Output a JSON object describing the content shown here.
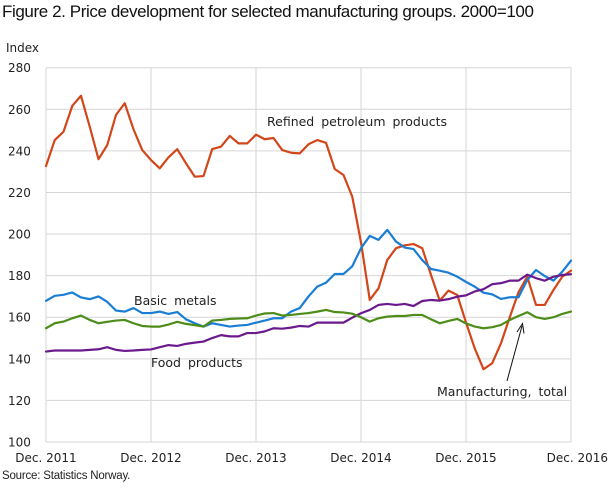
{
  "title": "Figure 2. Price development for selected manufacturing groups. 2000=100",
  "source": "Source: Statistics Norway.",
  "chart_data": {
    "type": "line",
    "title": "Figure 2. Price development for selected manufacturing groups. 2000=100",
    "xlabel": "",
    "ylabel": "Index",
    "ylim": [
      100,
      280
    ],
    "yticks": [
      100,
      120,
      140,
      160,
      180,
      200,
      220,
      240,
      260,
      280
    ],
    "xticks": [
      "Dec. 2011",
      "Dec. 2012",
      "Dec. 2013",
      "Dec. 2014",
      "Dec. 2015",
      "Dec. 2016"
    ],
    "x_start": "Dec. 2011",
    "x_end": "Dec. 2016",
    "x_frequency": "monthly",
    "grid": true,
    "legend": "inline-annotations",
    "series": [
      {
        "name": "Refined petroleum products",
        "color": "#d2461a",
        "values": [
          232.7,
          245.2,
          249.2,
          261.6,
          266.5,
          251.6,
          236.0,
          242.8,
          257.3,
          262.9,
          250.4,
          240.4,
          235.6,
          231.6,
          236.9,
          240.8,
          234.0,
          227.6,
          227.9,
          240.9,
          242.0,
          247.2,
          243.6,
          243.6,
          247.8,
          245.6,
          246.2,
          240.4,
          239.1,
          238.8,
          243.2,
          245.2,
          243.9,
          231.3,
          228.4,
          218.0,
          196.0,
          168.3,
          173.9,
          187.5,
          193.2,
          194.6,
          195.2,
          193.2,
          180.3,
          168.0,
          172.8,
          170.7,
          157.5,
          145.0,
          135.0,
          137.9,
          147.5,
          160.0,
          172.0,
          179.5,
          165.9,
          165.9,
          173.1,
          179.5,
          182.4
        ]
      },
      {
        "name": "Basic metals",
        "color": "#1a7ed4",
        "values": [
          167.9,
          170.3,
          170.8,
          171.9,
          169.5,
          168.7,
          170.0,
          167.4,
          163.2,
          162.7,
          164.4,
          162.0,
          162.0,
          162.7,
          161.6,
          162.5,
          159.0,
          157.1,
          155.5,
          157.1,
          156.3,
          155.5,
          156.0,
          156.3,
          157.4,
          158.4,
          159.5,
          159.5,
          162.7,
          164.4,
          170.0,
          174.7,
          176.6,
          180.8,
          180.8,
          184.5,
          193.2,
          199.1,
          197.2,
          202.0,
          196.4,
          193.5,
          192.8,
          187.5,
          183.2,
          182.4,
          181.4,
          179.5,
          177.0,
          174.7,
          171.8,
          171.0,
          168.8,
          169.6,
          169.6,
          177.9,
          182.7,
          179.8,
          177.6,
          181.9,
          187.2
        ]
      },
      {
        "name": "Food products",
        "color": "#6a1a8c",
        "values": [
          143.5,
          144.0,
          144.0,
          144.0,
          144.0,
          144.3,
          144.6,
          145.6,
          144.3,
          143.8,
          144.0,
          144.3,
          144.5,
          145.6,
          146.6,
          146.2,
          147.2,
          147.8,
          148.3,
          150.0,
          151.4,
          150.8,
          150.8,
          152.4,
          152.4,
          153.2,
          154.7,
          154.5,
          155.0,
          155.8,
          155.5,
          157.4,
          157.4,
          157.4,
          157.4,
          159.8,
          161.9,
          163.5,
          165.9,
          166.4,
          165.9,
          166.4,
          165.4,
          167.8,
          168.3,
          168.0,
          168.7,
          169.9,
          170.5,
          172.4,
          173.5,
          175.9,
          176.4,
          177.6,
          177.6,
          180.5,
          178.8,
          177.6,
          179.5,
          180.3,
          180.7
        ]
      },
      {
        "name": "Manufacturing, total",
        "color": "#4e8c1a",
        "values": [
          154.7,
          157.1,
          157.9,
          159.5,
          160.8,
          158.7,
          157.1,
          157.8,
          158.4,
          158.7,
          157.1,
          155.8,
          155.5,
          155.5,
          156.5,
          157.8,
          156.8,
          156.2,
          155.5,
          158.4,
          158.7,
          159.2,
          159.4,
          159.5,
          160.8,
          161.8,
          162.0,
          160.8,
          161.1,
          161.6,
          162.0,
          162.7,
          163.5,
          162.5,
          162.3,
          161.7,
          160.0,
          157.9,
          159.5,
          160.3,
          160.6,
          160.6,
          161.1,
          161.1,
          159.0,
          157.1,
          158.2,
          159.2,
          157.0,
          155.5,
          154.7,
          155.2,
          156.3,
          158.7,
          160.6,
          162.4,
          160.0,
          159.2,
          160.0,
          161.6,
          162.7
        ]
      }
    ],
    "annotations": [
      {
        "text": "Refined petroleum products",
        "series": "Refined petroleum products"
      },
      {
        "text": "Basic metals",
        "series": "Basic metals"
      },
      {
        "text": "Food products",
        "series": "Food products"
      },
      {
        "text": "Manufacturing,  total",
        "series": "Manufacturing, total",
        "arrow": true
      }
    ],
    "gridline_color": "#d6d6d6",
    "arrow_color": "#111111"
  }
}
